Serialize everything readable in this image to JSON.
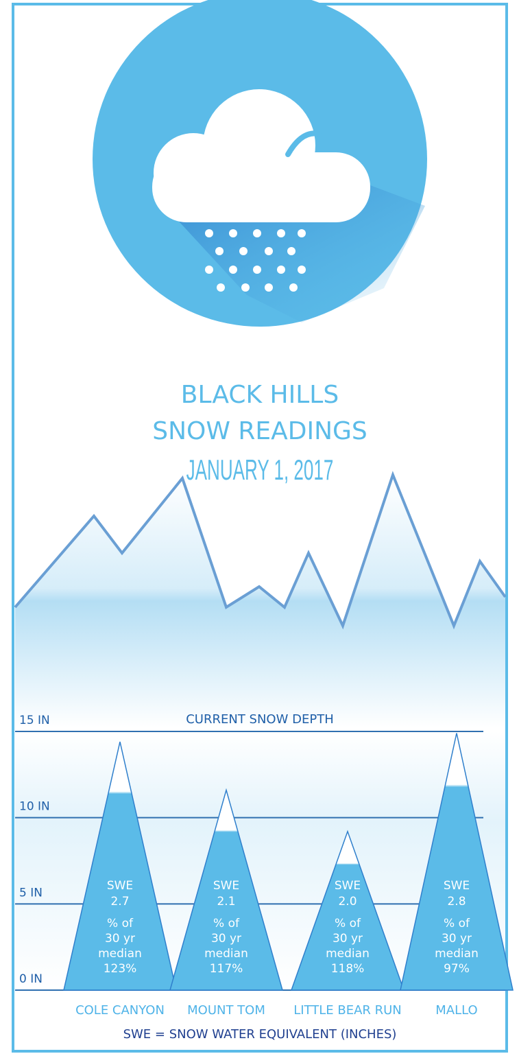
{
  "chart_data": {
    "type": "bar",
    "title": [
      "BLACK HILLS",
      "SNOW READINGS"
    ],
    "subtitle": "JANUARY 1, 2017",
    "y_label": "CURRENT SNOW DEPTH",
    "categories": [
      "COLE CANYON",
      "MOUNT TOM",
      "LITTLE BEAR RUN",
      "MALLO"
    ],
    "values": [
      14.4,
      11.6,
      9.2,
      14.9
    ],
    "color": "#5bbbe8",
    "ylim": [
      0,
      15
    ],
    "yticks": [
      {
        "value": 0,
        "label": "0 IN"
      },
      {
        "value": 5,
        "label": "5 IN"
      },
      {
        "value": 10,
        "label": "10 IN"
      },
      {
        "value": 15,
        "label": "15 IN"
      }
    ],
    "grid": true,
    "swe_label": "SWE",
    "swe": [
      2.7,
      2.1,
      2.0,
      2.8
    ],
    "swe_value_labels": [
      "2.7",
      "2.1",
      "2.0",
      "2.8"
    ],
    "median_label": [
      "% of",
      "30 yr",
      "median"
    ],
    "percent_of_median": [
      123,
      117,
      118,
      97
    ],
    "percent_value_labels": [
      "123%",
      "117%",
      "118%",
      "97%"
    ],
    "footnote": "SWE = SNOW WATER EQUIVALENT (INCHES)"
  }
}
